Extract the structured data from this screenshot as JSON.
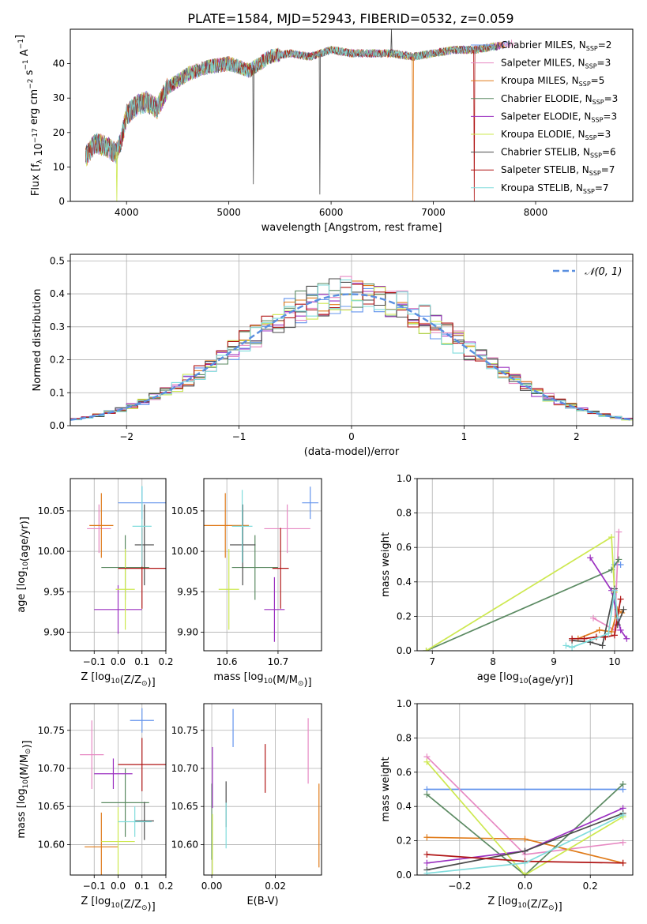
{
  "figure_title": "PLATE=1584, MJD=52943, FIBERID=0532, z=0.059",
  "colors": {
    "Chabrier MILES": "#6495ed",
    "Salpeter MILES": "#e78ac3",
    "Kroupa MILES": "#e07b1a",
    "Chabrier ELODIE": "#5b8a62",
    "Salpeter ELODIE": "#9b30c0",
    "Kroupa ELODIE": "#cde84f",
    "Chabrier STELIB": "#4a4a4a",
    "Salpeter STELIB": "#b01515",
    "Kroupa STELIB": "#7fdcdc",
    "normal_curve": "#5a8fe0",
    "grid": "#b0b0b0"
  },
  "chart_data": [
    {
      "id": "spectrum",
      "type": "line",
      "title": "PLATE=1584, MJD=52943, FIBERID=0532, z=0.059",
      "xlabel": "wavelength [Angstrom, rest frame]",
      "ylabel": "Flux [f_λ 10^-17 erg cm^-2 s^-1 A^-1]",
      "xlim": [
        3450,
        8950
      ],
      "ylim": [
        0,
        50
      ],
      "xticks": [
        4000,
        5000,
        6000,
        7000,
        8000
      ],
      "yticks": [
        0,
        10,
        20,
        30,
        40
      ],
      "grid": false,
      "legend_position": "right",
      "legend": [
        {
          "model": "Chabrier MILES",
          "label": "Chabrier MILES, N",
          "sub": "SSP",
          "n": "=2"
        },
        {
          "model": "Salpeter MILES",
          "label": "Salpeter MILES, N",
          "sub": "SSP",
          "n": "=3"
        },
        {
          "model": "Kroupa MILES",
          "label": "Kroupa MILES, N",
          "sub": "SSP",
          "n": "=5"
        },
        {
          "model": "Chabrier ELODIE",
          "label": "Chabrier ELODIE, N",
          "sub": "SSP",
          "n": "=3"
        },
        {
          "model": "Salpeter ELODIE",
          "label": "Salpeter ELODIE, N",
          "sub": "SSP",
          "n": "=3"
        },
        {
          "model": "Kroupa ELODIE",
          "label": "Kroupa ELODIE, N",
          "sub": "SSP",
          "n": "=3"
        },
        {
          "model": "Chabrier STELIB",
          "label": "Chabrier STELIB, N",
          "sub": "SSP",
          "n": "=6"
        },
        {
          "model": "Salpeter STELIB",
          "label": "Salpeter STELIB, N",
          "sub": "SSP",
          "n": "=7"
        },
        {
          "model": "Kroupa STELIB",
          "label": "Kroupa STELIB, N",
          "sub": "SSP",
          "n": "=7"
        }
      ],
      "continuum_x": [
        3600,
        3700,
        3800,
        3900,
        3950,
        4000,
        4100,
        4200,
        4300,
        4400,
        4500,
        4600,
        4800,
        5000,
        5200,
        5400,
        5600,
        5800,
        6000,
        6200,
        6400,
        6600,
        6800,
        7000,
        7200,
        7400,
        7600,
        7800
      ],
      "continuum_y": [
        13,
        17,
        16,
        14,
        18,
        25,
        28,
        29,
        27,
        33,
        35,
        37,
        39,
        40,
        38,
        42,
        43,
        42,
        44,
        43,
        43,
        43,
        42,
        43,
        44,
        44,
        45,
        46
      ],
      "model_ends": [
        7750,
        7790,
        7700,
        7630,
        7660,
        7610,
        7650,
        7580,
        7600
      ],
      "spikes": [
        {
          "model": "Kroupa ELODIE",
          "x": 3905,
          "y": 0
        },
        {
          "model": "Chabrier STELIB",
          "x": 5240,
          "y": 5
        },
        {
          "model": "Chabrier STELIB",
          "x": 5890,
          "y": 2
        },
        {
          "model": "Kroupa MILES",
          "x": 6800,
          "y": 0
        },
        {
          "model": "Salpeter STELIB",
          "x": 7400,
          "y": 0
        },
        {
          "model": "Chabrier STELIB",
          "x": 6590,
          "y": 50
        }
      ]
    },
    {
      "id": "residuals",
      "type": "histogram",
      "xlabel": "(data-model)/error",
      "ylabel": "Normed distribution",
      "xlim": [
        -2.5,
        2.5
      ],
      "ylim": [
        0,
        0.52
      ],
      "xticks": [
        -2,
        -1,
        0,
        1,
        2
      ],
      "yticks": [
        0.0,
        0.1,
        0.2,
        0.3,
        0.4,
        0.5
      ],
      "grid": true,
      "legend_position": "top-right",
      "legend": [
        {
          "label": "𝒩(0, 1)",
          "style": "dashed"
        }
      ],
      "bin_width": 0.1
    },
    {
      "id": "age_vs_Z",
      "type": "scatter",
      "xlabel": "Z [log10(Z/Z☉)]",
      "ylabel": "age  [log10(age/yr)]",
      "xlim": [
        -0.2,
        0.2
      ],
      "ylim": [
        9.877,
        10.09
      ],
      "xticks": [
        -0.1,
        0.0,
        0.1,
        0.2
      ],
      "yticks": [
        9.9,
        9.95,
        10.0,
        10.05
      ],
      "grid": true,
      "points": [
        {
          "model": "Chabrier MILES",
          "x": 0.1,
          "y": 10.06,
          "xerr": 0.1,
          "yerr": 0.02
        },
        {
          "model": "Salpeter MILES",
          "x": -0.08,
          "y": 10.028,
          "xerr": 0.05,
          "yerr": 0.03
        },
        {
          "model": "Kroupa MILES",
          "x": -0.07,
          "y": 10.032,
          "xerr": 0.05,
          "yerr": 0.04
        },
        {
          "model": "Chabrier ELODIE",
          "x": 0.03,
          "y": 9.98,
          "xerr": 0.1,
          "yerr": 0.04
        },
        {
          "model": "Salpeter ELODIE",
          "x": 0.0,
          "y": 9.928,
          "xerr": 0.1,
          "yerr": 0.03
        },
        {
          "model": "Kroupa ELODIE",
          "x": 0.03,
          "y": 9.953,
          "xerr": 0.04,
          "yerr": 0.05
        },
        {
          "model": "Chabrier STELIB",
          "x": 0.11,
          "y": 10.008,
          "xerr": 0.04,
          "yerr": 0.05
        },
        {
          "model": "Salpeter STELIB",
          "x": 0.1,
          "y": 9.979,
          "xerr": 0.1,
          "yerr": 0.05
        },
        {
          "model": "Kroupa STELIB",
          "x": 0.1,
          "y": 10.031,
          "xerr": 0.04,
          "yerr": 0.05
        }
      ]
    },
    {
      "id": "age_vs_mass",
      "type": "scatter",
      "xlabel": "mass [log10(M/M☉)]",
      "ylabel": "",
      "xlim": [
        10.555,
        10.785
      ],
      "ylim": [
        9.877,
        10.09
      ],
      "xticks": [
        10.6,
        10.7
      ],
      "yticks": [
        9.9,
        9.95,
        10.0,
        10.05
      ],
      "grid": true,
      "points": [
        {
          "model": "Chabrier MILES",
          "x": 10.763,
          "y": 10.06,
          "xerr": 0.016,
          "yerr": 0.02
        },
        {
          "model": "Salpeter MILES",
          "x": 10.718,
          "y": 10.028,
          "xerr": 0.045,
          "yerr": 0.03
        },
        {
          "model": "Kroupa MILES",
          "x": 10.597,
          "y": 10.032,
          "xerr": 0.046,
          "yerr": 0.04
        },
        {
          "model": "Chabrier ELODIE",
          "x": 10.655,
          "y": 9.98,
          "xerr": 0.045,
          "yerr": 0.04
        },
        {
          "model": "Salpeter ELODIE",
          "x": 10.693,
          "y": 9.928,
          "xerr": 0.02,
          "yerr": 0.04
        },
        {
          "model": "Kroupa ELODIE",
          "x": 10.604,
          "y": 9.953,
          "xerr": 0.02,
          "yerr": 0.05
        },
        {
          "model": "Chabrier STELIB",
          "x": 10.631,
          "y": 10.008,
          "xerr": 0.025,
          "yerr": 0.05
        },
        {
          "model": "Salpeter STELIB",
          "x": 10.705,
          "y": 9.979,
          "xerr": 0.016,
          "yerr": 0.05
        },
        {
          "model": "Kroupa STELIB",
          "x": 10.63,
          "y": 10.031,
          "xerr": 0.02,
          "yerr": 0.045
        }
      ]
    },
    {
      "id": "weights_vs_age",
      "type": "line",
      "xlabel": "age  [log10(age/yr)]",
      "ylabel": "mass weight",
      "xlim": [
        6.75,
        10.3
      ],
      "ylim": [
        0,
        1.0
      ],
      "xticks": [
        7,
        8,
        9,
        10
      ],
      "yticks": [
        0.0,
        0.2,
        0.4,
        0.6,
        0.8,
        1.0
      ],
      "grid": true,
      "series": [
        {
          "model": "Chabrier MILES",
          "x": [
            10.0,
            10.1
          ],
          "y": [
            0.5,
            0.5
          ]
        },
        {
          "model": "Salpeter MILES",
          "x": [
            9.65,
            10.0,
            10.07
          ],
          "y": [
            0.19,
            0.12,
            0.69
          ]
        },
        {
          "model": "Kroupa MILES",
          "x": [
            9.4,
            9.75,
            9.95,
            10.05,
            10.12
          ],
          "y": [
            0.07,
            0.12,
            0.11,
            0.24,
            0.22
          ]
        },
        {
          "model": "Chabrier ELODIE",
          "x": [
            6.9,
            9.95,
            10.07
          ],
          "y": [
            0.0,
            0.47,
            0.53
          ]
        },
        {
          "model": "Salpeter ELODIE",
          "x": [
            9.6,
            9.95,
            10.1,
            10.2
          ],
          "y": [
            0.54,
            0.35,
            0.12,
            0.07
          ]
        },
        {
          "model": "Kroupa ELODIE",
          "x": [
            6.9,
            9.95,
            10.0
          ],
          "y": [
            0.0,
            0.66,
            0.34
          ]
        },
        {
          "model": "Chabrier STELIB",
          "x": [
            9.3,
            9.6,
            9.8,
            10.0,
            10.05,
            10.15
          ],
          "y": [
            0.06,
            0.05,
            0.03,
            0.36,
            0.15,
            0.24
          ]
        },
        {
          "model": "Salpeter STELIB",
          "x": [
            9.3,
            9.5,
            9.7,
            9.85,
            10.0,
            10.1
          ],
          "y": [
            0.07,
            0.07,
            0.08,
            0.08,
            0.09,
            0.3
          ]
        },
        {
          "model": "Kroupa STELIB",
          "x": [
            9.2,
            9.3,
            9.9,
            10.0,
            10.05
          ],
          "y": [
            0.03,
            0.02,
            0.1,
            0.35,
            0.19
          ]
        }
      ]
    },
    {
      "id": "mass_vs_Z",
      "type": "scatter",
      "xlabel": "Z [log10(Z/Z☉)]",
      "ylabel": "mass [log10(M/M☉)]",
      "xlim": [
        -0.2,
        0.2
      ],
      "ylim": [
        10.56,
        10.785
      ],
      "xticks": [
        -0.1,
        0.0,
        0.1,
        0.2
      ],
      "yticks": [
        10.6,
        10.65,
        10.7,
        10.75
      ],
      "grid": true,
      "points": [
        {
          "model": "Chabrier MILES",
          "x": 0.1,
          "y": 10.763,
          "xerr": 0.05,
          "yerr": 0.016
        },
        {
          "model": "Salpeter MILES",
          "x": -0.11,
          "y": 10.718,
          "xerr": 0.05,
          "yerr": 0.045
        },
        {
          "model": "Kroupa MILES",
          "x": -0.07,
          "y": 10.597,
          "xerr": 0.07,
          "yerr": 0.045
        },
        {
          "model": "Chabrier ELODIE",
          "x": 0.03,
          "y": 10.655,
          "xerr": 0.1,
          "yerr": 0.045
        },
        {
          "model": "Salpeter ELODIE",
          "x": -0.02,
          "y": 10.693,
          "xerr": 0.08,
          "yerr": 0.02
        },
        {
          "model": "Kroupa ELODIE",
          "x": 0.0,
          "y": 10.604,
          "xerr": 0.07,
          "yerr": 0.045
        },
        {
          "model": "Chabrier STELIB",
          "x": 0.11,
          "y": 10.631,
          "xerr": 0.04,
          "yerr": 0.025
        },
        {
          "model": "Salpeter STELIB",
          "x": 0.1,
          "y": 10.705,
          "xerr": 0.1,
          "yerr": 0.035
        },
        {
          "model": "Kroupa STELIB",
          "x": 0.07,
          "y": 10.63,
          "xerr": 0.07,
          "yerr": 0.02
        }
      ]
    },
    {
      "id": "mass_vs_ebv",
      "type": "scatter",
      "xlabel": "E(B-V)",
      "ylabel": "",
      "xlim": [
        -0.0025,
        0.0345
      ],
      "ylim": [
        10.56,
        10.785
      ],
      "xticks": [
        0.0,
        0.02
      ],
      "yticks": [
        10.6,
        10.65,
        10.7,
        10.75
      ],
      "grid": true,
      "points": [
        {
          "model": "Chabrier MILES",
          "x": 0.0067,
          "y": 10.753,
          "xerr": 0,
          "yerr": 0.025
        },
        {
          "model": "Salpeter MILES",
          "x": 0.0303,
          "y": 10.723,
          "xerr": 0,
          "yerr": 0.043
        },
        {
          "model": "Kroupa MILES",
          "x": 0.0337,
          "y": 10.625,
          "xerr": 0,
          "yerr": 0.055
        },
        {
          "model": "Chabrier ELODIE",
          "x": 0.0,
          "y": 10.63,
          "xerr": 0,
          "yerr": 0.05
        },
        {
          "model": "Salpeter ELODIE",
          "x": 0.0002,
          "y": 10.688,
          "xerr": 0,
          "yerr": 0.04
        },
        {
          "model": "Kroupa ELODIE",
          "x": 0.0002,
          "y": 10.6,
          "xerr": 0,
          "yerr": 0.04
        },
        {
          "model": "Chabrier STELIB",
          "x": 0.0045,
          "y": 10.653,
          "xerr": 0,
          "yerr": 0.03
        },
        {
          "model": "Salpeter STELIB",
          "x": 0.0168,
          "y": 10.7,
          "xerr": 0,
          "yerr": 0.032
        },
        {
          "model": "Kroupa STELIB",
          "x": 0.0045,
          "y": 10.625,
          "xerr": 0,
          "yerr": 0.03
        }
      ]
    },
    {
      "id": "weights_vs_Z",
      "type": "line",
      "xlabel": "Z [log10(Z/Z☉)]",
      "ylabel": "mass weight",
      "xlim": [
        -0.33,
        0.33
      ],
      "ylim": [
        0,
        1.0
      ],
      "xticks": [
        -0.2,
        0.0,
        0.2
      ],
      "yticks": [
        0.0,
        0.2,
        0.4,
        0.6,
        0.8,
        1.0
      ],
      "grid": true,
      "series": [
        {
          "model": "Chabrier MILES",
          "x": [
            -0.3,
            0.3
          ],
          "y": [
            0.5,
            0.5
          ]
        },
        {
          "model": "Salpeter MILES",
          "x": [
            -0.3,
            0.0,
            0.3
          ],
          "y": [
            0.69,
            0.12,
            0.19
          ]
        },
        {
          "model": "Kroupa MILES",
          "x": [
            -0.3,
            0.0,
            0.3
          ],
          "y": [
            0.22,
            0.21,
            0.07
          ]
        },
        {
          "model": "Chabrier ELODIE",
          "x": [
            -0.3,
            0.0,
            0.3
          ],
          "y": [
            0.47,
            0.0,
            0.53
          ]
        },
        {
          "model": "Salpeter ELODIE",
          "x": [
            -0.3,
            0.0,
            0.3
          ],
          "y": [
            0.07,
            0.14,
            0.39
          ]
        },
        {
          "model": "Kroupa ELODIE",
          "x": [
            -0.3,
            0.0,
            0.3
          ],
          "y": [
            0.66,
            0.0,
            0.34
          ]
        },
        {
          "model": "Chabrier STELIB",
          "x": [
            -0.3,
            0.0,
            0.3
          ],
          "y": [
            0.03,
            0.14,
            0.36
          ]
        },
        {
          "model": "Salpeter STELIB",
          "x": [
            -0.3,
            0.0,
            0.3
          ],
          "y": [
            0.12,
            0.08,
            0.07
          ]
        },
        {
          "model": "Kroupa STELIB",
          "x": [
            -0.3,
            0.0,
            0.3
          ],
          "y": [
            0.01,
            0.07,
            0.35
          ]
        }
      ]
    }
  ]
}
